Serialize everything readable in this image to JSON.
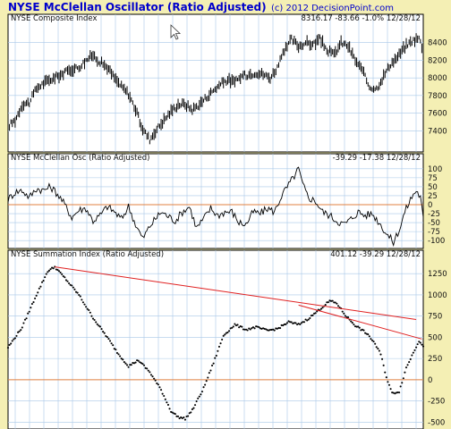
{
  "header": {
    "title": "NYSE McClellan Oscillator (Ratio Adjusted)",
    "copyright": "(c) 2012 DecisionPoint.com"
  },
  "colors": {
    "background": "#f4efb4",
    "plot_background": "#ffffff",
    "grid": "#a8c8e8",
    "zero_line": "#e08040",
    "trend_line": "#e02020",
    "title": "#0000cc",
    "series": "#000000"
  },
  "chart_data": [
    {
      "type": "bar",
      "label": "NYSE Composite Index",
      "readout": "8316.17  -83.66  -1.0%  12/28/12",
      "ylim": [
        7200,
        8600
      ],
      "yticks": [
        7400,
        7600,
        7800,
        8000,
        8200,
        8400
      ],
      "anchors": [
        [
          0,
          7450
        ],
        [
          5,
          7520
        ],
        [
          10,
          7700
        ],
        [
          15,
          7720
        ],
        [
          20,
          7880
        ],
        [
          25,
          7940
        ],
        [
          30,
          7980
        ],
        [
          35,
          8020
        ],
        [
          40,
          8060
        ],
        [
          45,
          8100
        ],
        [
          50,
          8120
        ],
        [
          55,
          8200
        ],
        [
          60,
          8260
        ],
        [
          65,
          8180
        ],
        [
          70,
          8120
        ],
        [
          75,
          8000
        ],
        [
          80,
          7900
        ],
        [
          85,
          7820
        ],
        [
          90,
          7640
        ],
        [
          95,
          7420
        ],
        [
          100,
          7300
        ],
        [
          105,
          7420
        ],
        [
          110,
          7520
        ],
        [
          115,
          7620
        ],
        [
          120,
          7700
        ],
        [
          125,
          7700
        ],
        [
          130,
          7640
        ],
        [
          135,
          7700
        ],
        [
          140,
          7780
        ],
        [
          145,
          7860
        ],
        [
          150,
          7930
        ],
        [
          155,
          7980
        ],
        [
          160,
          7950
        ],
        [
          165,
          8020
        ],
        [
          170,
          8040
        ],
        [
          175,
          8060
        ],
        [
          180,
          8040
        ],
        [
          185,
          8000
        ],
        [
          190,
          8120
        ],
        [
          195,
          8300
        ],
        [
          200,
          8440
        ],
        [
          205,
          8360
        ],
        [
          210,
          8400
        ],
        [
          215,
          8380
        ],
        [
          220,
          8440
        ],
        [
          225,
          8320
        ],
        [
          230,
          8260
        ],
        [
          235,
          8400
        ],
        [
          240,
          8360
        ],
        [
          245,
          8200
        ],
        [
          250,
          8080
        ],
        [
          255,
          7900
        ],
        [
          260,
          7880
        ],
        [
          265,
          8020
        ],
        [
          270,
          8160
        ],
        [
          275,
          8240
        ],
        [
          280,
          8350
        ],
        [
          285,
          8420
        ],
        [
          290,
          8450
        ],
        [
          293,
          8316
        ]
      ]
    },
    {
      "type": "line",
      "label": "NYSE McClellan Osc (Ratio Adjusted)",
      "readout": "-39.29  -17.38  12/28/12",
      "ylim": [
        -112,
        112
      ],
      "yticks": [
        100,
        75,
        50,
        25,
        0,
        -25,
        -50,
        -75,
        -100
      ],
      "reference_line": 0,
      "anchors": [
        [
          0,
          15
        ],
        [
          5,
          35
        ],
        [
          10,
          40
        ],
        [
          15,
          20
        ],
        [
          20,
          45
        ],
        [
          25,
          40
        ],
        [
          30,
          50
        ],
        [
          35,
          30
        ],
        [
          40,
          0
        ],
        [
          45,
          -35
        ],
        [
          50,
          -15
        ],
        [
          55,
          -10
        ],
        [
          60,
          -45
        ],
        [
          65,
          -30
        ],
        [
          70,
          -5
        ],
        [
          75,
          -20
        ],
        [
          80,
          -40
        ],
        [
          85,
          -5
        ],
        [
          90,
          -55
        ],
        [
          95,
          -95
        ],
        [
          100,
          -60
        ],
        [
          103,
          -45
        ],
        [
          108,
          -20
        ],
        [
          112,
          -30
        ],
        [
          118,
          -45
        ],
        [
          123,
          -20
        ],
        [
          128,
          -5
        ],
        [
          133,
          -65
        ],
        [
          138,
          -40
        ],
        [
          143,
          -10
        ],
        [
          148,
          -30
        ],
        [
          153,
          -20
        ],
        [
          158,
          -20
        ],
        [
          163,
          -50
        ],
        [
          168,
          -55
        ],
        [
          173,
          -20
        ],
        [
          178,
          -25
        ],
        [
          183,
          -10
        ],
        [
          188,
          -20
        ],
        [
          193,
          25
        ],
        [
          198,
          55
        ],
        [
          202,
          80
        ],
        [
          205,
          100
        ],
        [
          208,
          55
        ],
        [
          212,
          20
        ],
        [
          217,
          10
        ],
        [
          222,
          -20
        ],
        [
          227,
          -30
        ],
        [
          232,
          -45
        ],
        [
          237,
          -55
        ],
        [
          242,
          -40
        ],
        [
          247,
          -20
        ],
        [
          252,
          -30
        ],
        [
          257,
          -25
        ],
        [
          262,
          -50
        ],
        [
          267,
          -80
        ],
        [
          272,
          -105
        ],
        [
          277,
          -60
        ],
        [
          280,
          -20
        ],
        [
          284,
          15
        ],
        [
          288,
          40
        ],
        [
          291,
          20
        ],
        [
          293,
          -39
        ]
      ]
    },
    {
      "type": "scatter",
      "label": "NYSE Summation Index (Ratio Adjusted)",
      "readout": "401.12  -39.29  12/28/12",
      "ylim": [
        -560,
        1400
      ],
      "yticks": [
        1250,
        1000,
        750,
        500,
        250,
        0,
        -250,
        -500
      ],
      "reference_line": 0,
      "anchors": [
        [
          0,
          380
        ],
        [
          10,
          620
        ],
        [
          20,
          1000
        ],
        [
          28,
          1280
        ],
        [
          33,
          1330
        ],
        [
          40,
          1200
        ],
        [
          50,
          1000
        ],
        [
          60,
          730
        ],
        [
          70,
          500
        ],
        [
          78,
          300
        ],
        [
          85,
          160
        ],
        [
          92,
          230
        ],
        [
          100,
          90
        ],
        [
          108,
          -120
        ],
        [
          115,
          -370
        ],
        [
          120,
          -440
        ],
        [
          125,
          -460
        ],
        [
          130,
          -360
        ],
        [
          138,
          -100
        ],
        [
          145,
          200
        ],
        [
          152,
          520
        ],
        [
          160,
          650
        ],
        [
          168,
          590
        ],
        [
          175,
          620
        ],
        [
          183,
          580
        ],
        [
          190,
          600
        ],
        [
          198,
          680
        ],
        [
          205,
          650
        ],
        [
          212,
          720
        ],
        [
          220,
          830
        ],
        [
          227,
          930
        ],
        [
          232,
          900
        ],
        [
          238,
          760
        ],
        [
          245,
          640
        ],
        [
          252,
          560
        ],
        [
          258,
          450
        ],
        [
          263,
          300
        ],
        [
          267,
          30
        ],
        [
          271,
          -160
        ],
        [
          276,
          -140
        ],
        [
          281,
          140
        ],
        [
          286,
          320
        ],
        [
          290,
          460
        ],
        [
          293,
          401
        ]
      ],
      "trend_lines": [
        [
          [
            33,
            1330
          ],
          [
            288,
            710
          ]
        ],
        [
          [
            205,
            880
          ],
          [
            292,
            480
          ]
        ]
      ]
    }
  ]
}
